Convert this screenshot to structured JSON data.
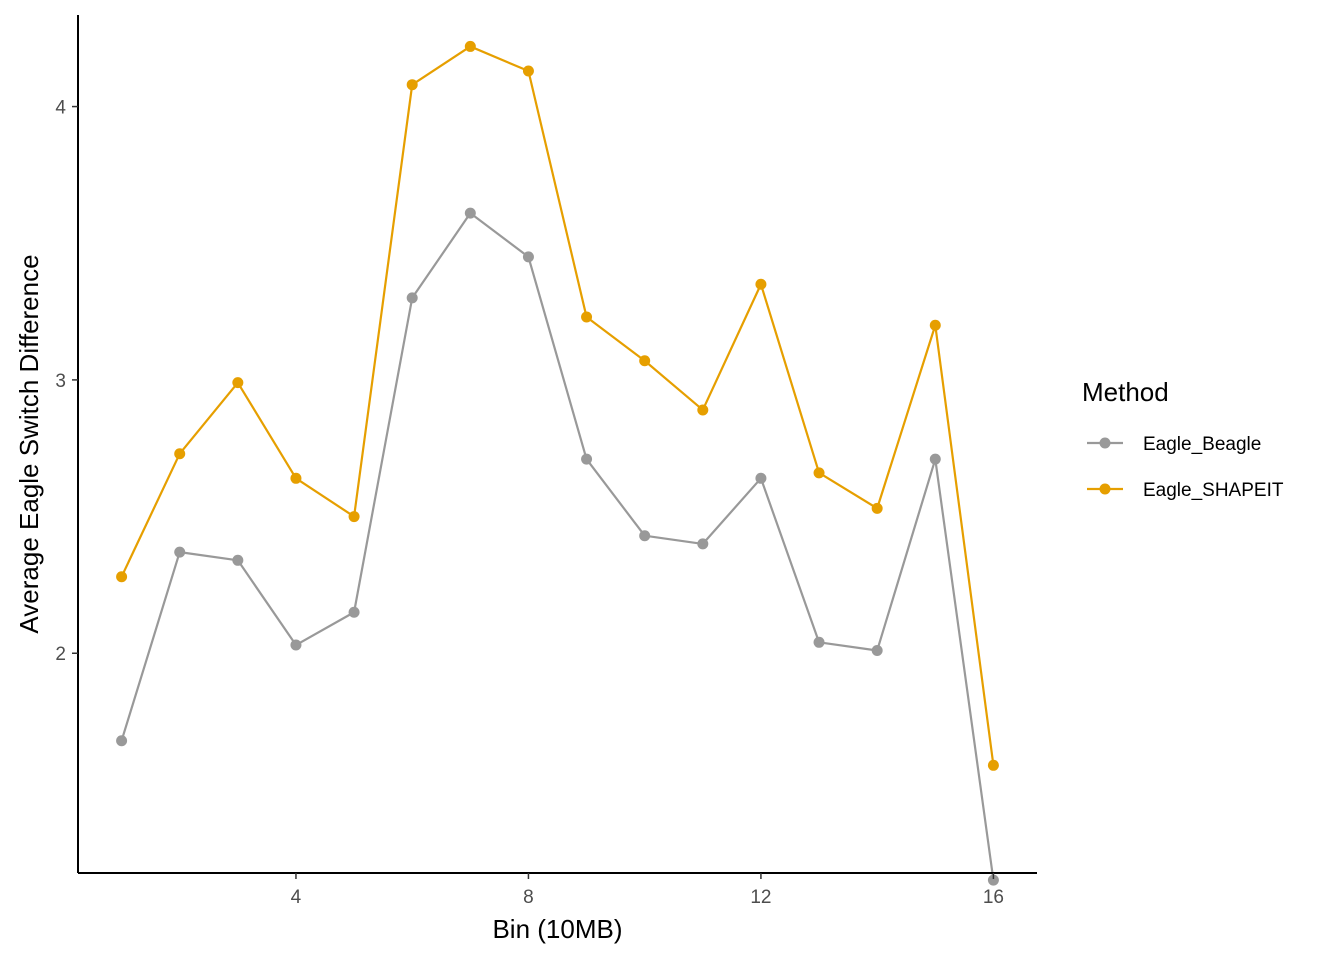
{
  "chart_data": {
    "type": "line",
    "title": "",
    "xlabel": "Bin (10MB)",
    "ylabel": "Average Eagle Switch Difference",
    "x": [
      1,
      2,
      3,
      4,
      5,
      6,
      7,
      8,
      9,
      10,
      11,
      12,
      13,
      14,
      15,
      16
    ],
    "xlim": [
      0.25,
      16.75
    ],
    "ylim": [
      1.196,
      4.335
    ],
    "x_ticks": [
      4,
      8,
      12,
      16
    ],
    "y_ticks": [
      2,
      3,
      4
    ],
    "grid": false,
    "legend": {
      "title": "Method",
      "position": "right"
    },
    "series": [
      {
        "name": "Eagle_Beagle",
        "color": "#999999",
        "values": [
          1.68,
          2.37,
          2.34,
          2.03,
          2.15,
          3.3,
          3.61,
          3.45,
          2.71,
          2.43,
          2.4,
          2.64,
          2.04,
          2.01,
          2.71,
          1.17
        ]
      },
      {
        "name": "Eagle_SHAPEIT",
        "color": "#E69F00",
        "values": [
          2.28,
          2.73,
          2.99,
          2.64,
          2.5,
          4.08,
          4.22,
          4.13,
          3.23,
          3.07,
          2.89,
          3.35,
          2.66,
          2.53,
          3.2,
          1.59
        ]
      }
    ]
  }
}
